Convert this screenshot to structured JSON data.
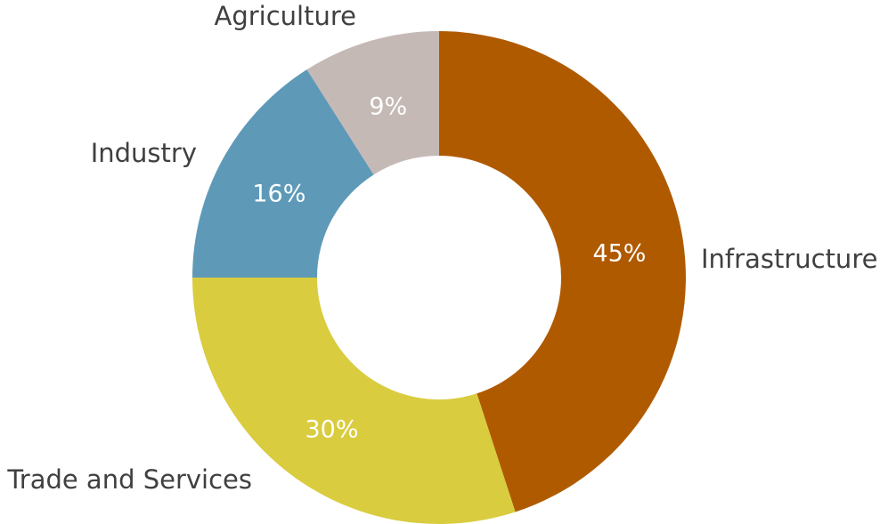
{
  "chart_data": {
    "type": "donut",
    "categories": [
      "Infrastructure",
      "Trade and Services",
      "Industry",
      "Agriculture"
    ],
    "values": [
      45,
      30,
      16,
      9
    ],
    "value_labels": [
      "45%",
      "30%",
      "16%",
      "9%"
    ],
    "colors": [
      "#b05a00",
      "#d9cc3f",
      "#5e9ab8",
      "#c5b9b6"
    ]
  }
}
